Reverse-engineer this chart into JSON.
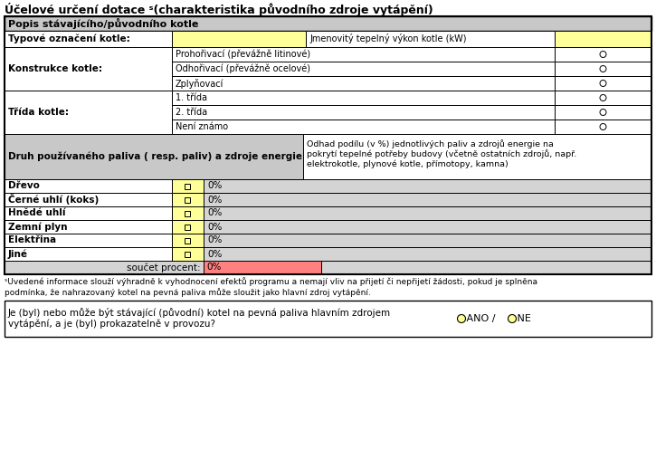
{
  "title": "Účelové určení dotace ˢ(charakteristika původního zdroje vytápění)",
  "bg_color": "#ffffff",
  "header_bg": "#c8c8c8",
  "yellow_bg": "#ffff99",
  "gray_bg": "#d4d4d4",
  "red_bg": "#ff8080",
  "section1_header": "Popis stávajícího/původního kotle",
  "row_typove": "Typové označení kotle:",
  "row_typove_mid": "Jmenovitý tepelný výkon kotle (kW)",
  "row_konstrukce": "Konstrukce kotle:",
  "konstrukce_options": [
    "Prohořivací (převážně litinové)",
    "Odhořivací (převážně ocelové)",
    "Zplyňovací"
  ],
  "row_trida": "Třída kotle:",
  "trida_options": [
    "1. třída",
    "2. třída",
    "Není známo"
  ],
  "druh_label": "Druh používaného paliva ( resp. paliv) a zdroje energie",
  "druh_desc": "Odhad podílu (v %) jednotlivých paliv a zdrojů energie na\npokrytí tepelné potřeby budovy (včetně ostatních zdrojů, např.\nelektrokotle, plynové kotle, přímotopy, kamna)",
  "paliva": [
    "Dřevo",
    "Černé uhlí (koks)",
    "Hnědé uhlí",
    "Zemní plyn",
    "Elektřina",
    "Jiné"
  ],
  "paliva_values": [
    "0%",
    "0%",
    "0%",
    "0%",
    "0%",
    "0%"
  ],
  "soucet_label": "součet procent:",
  "soucet_value": "0%",
  "footnote1": "ˢUvedené informace slouží výhradně k vyhodnocení efektů programu a nemají vliv na přijetí či nepřijetí žádosti, pokud je splněna",
  "footnote2": "podmínka, že nahrazovaný kotel na pevná paliva může sloužit jako hlavní zdroj vytápění.",
  "bottom_question": "Je (byl) nebo může být stávající (původní) kotel na pevná paliva hlavním zdrojem\nvytápění, a je (byl) prokazatelně v provozu?",
  "ano_label": "ANO / ",
  "ne_label": " NE"
}
